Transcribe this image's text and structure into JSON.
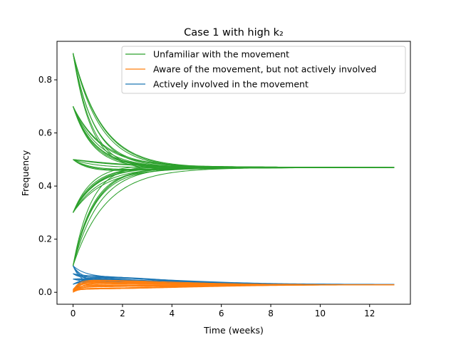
{
  "chart_data": {
    "type": "line",
    "title": "Case 1 with high k₂",
    "xlabel": "Time (weeks)",
    "ylabel": "Frequency",
    "xlim": [
      -0.65,
      13.65
    ],
    "ylim": [
      -0.045,
      0.945
    ],
    "xticks": [
      0,
      2,
      4,
      6,
      8,
      10,
      12
    ],
    "yticks": [
      0.0,
      0.2,
      0.4,
      0.6,
      0.8
    ],
    "xtick_labels": [
      "0",
      "2",
      "4",
      "6",
      "8",
      "10",
      "12"
    ],
    "ytick_labels": [
      "0.0",
      "0.2",
      "0.4",
      "0.6",
      "0.8"
    ],
    "t_end": 13,
    "equilibrium": {
      "unfamiliar": 0.47,
      "aware": 0.028,
      "active": 0.03
    },
    "legend_position": "upper-right",
    "series": [
      {
        "key": "unfamiliar",
        "name": "Unfamiliar with the movement",
        "color": "#2ca02c",
        "initial_values": [
          0.9,
          0.7,
          0.5,
          0.3,
          0.1
        ],
        "overshoot_max": 0.03
      },
      {
        "key": "aware",
        "name": "Aware of the movement, but not actively involved",
        "color": "#ff7f0e",
        "initial_values": [
          0.0,
          0.005,
          0.01
        ],
        "peak_max": 0.05
      },
      {
        "key": "active",
        "name": "Actively involved in the movement",
        "color": "#1f77b4",
        "initial_values": [
          0.1,
          0.07,
          0.05,
          0.03,
          0.005
        ],
        "peak_max": 0.065
      }
    ]
  }
}
